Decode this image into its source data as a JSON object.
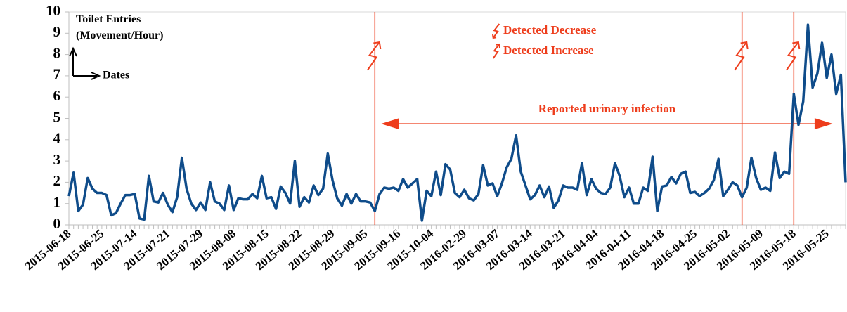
{
  "chart_data": {
    "type": "line",
    "ylabel": [
      "Toilet Entries",
      "(Movement/Hour)"
    ],
    "xlabel": "Dates",
    "legend": {
      "decrease": "Detected Decrease",
      "increase": "Detected Increase"
    },
    "interval": {
      "label": "Reported urinary infection",
      "start": 66,
      "end": 162,
      "y": 4.75
    },
    "events": [
      {
        "index": 65,
        "kind": "increase"
      },
      {
        "index": 143,
        "kind": "increase"
      },
      {
        "index": 154,
        "kind": "increase"
      }
    ],
    "event_color": "#ee3d1c",
    "ylim": [
      0,
      10
    ],
    "yticks": [
      0,
      1,
      2,
      3,
      4,
      5,
      6,
      7,
      8,
      9,
      10
    ],
    "grid": false,
    "categories": [
      "2015-06-18",
      null,
      null,
      null,
      null,
      null,
      null,
      "2015-06-25",
      null,
      null,
      null,
      null,
      null,
      null,
      "2015-07-14",
      null,
      null,
      null,
      null,
      null,
      null,
      "2015-07-21",
      null,
      null,
      null,
      null,
      null,
      null,
      "2015-07-29",
      null,
      null,
      null,
      null,
      null,
      null,
      "2015-08-08",
      null,
      null,
      null,
      null,
      null,
      null,
      "2015-08-15",
      null,
      null,
      null,
      null,
      null,
      null,
      "2015-08-22",
      null,
      null,
      null,
      null,
      null,
      null,
      "2015-08-29",
      null,
      null,
      null,
      null,
      null,
      null,
      "2015-09-05",
      null,
      null,
      null,
      null,
      null,
      null,
      "2015-09-16",
      null,
      null,
      null,
      null,
      null,
      null,
      "2015-10-04",
      null,
      null,
      null,
      null,
      null,
      null,
      "2016-02-29",
      null,
      null,
      null,
      null,
      null,
      null,
      "2016-03-07",
      null,
      null,
      null,
      null,
      null,
      null,
      "2016-03-14",
      null,
      null,
      null,
      null,
      null,
      null,
      "2016-03-21",
      null,
      null,
      null,
      null,
      null,
      null,
      "2016-04-04",
      null,
      null,
      null,
      null,
      null,
      null,
      "2016-04-11",
      null,
      null,
      null,
      null,
      null,
      null,
      "2016-04-18",
      null,
      null,
      null,
      null,
      null,
      null,
      "2016-04-25",
      null,
      null,
      null,
      null,
      null,
      null,
      "2016-05-02",
      null,
      null,
      null,
      null,
      null,
      null,
      "2016-05-09",
      null,
      null,
      null,
      null,
      null,
      null,
      "2016-05-18",
      null,
      null,
      null,
      null,
      null,
      null,
      "2016-05-25",
      null,
      null,
      null,
      null
    ],
    "series": [
      {
        "name": "Toilet Entries",
        "color": "#0f4c8a",
        "values": [
          1.35,
          2.45,
          0.65,
          0.95,
          2.2,
          1.7,
          1.5,
          1.5,
          1.4,
          0.45,
          0.55,
          1.0,
          1.4,
          1.4,
          1.45,
          0.3,
          0.25,
          2.3,
          1.1,
          1.05,
          1.5,
          0.95,
          0.6,
          1.3,
          3.15,
          1.7,
          1.0,
          0.7,
          1.05,
          0.7,
          2.0,
          1.1,
          1.0,
          0.7,
          1.85,
          0.7,
          1.25,
          1.2,
          1.2,
          1.45,
          1.25,
          2.3,
          1.25,
          1.3,
          0.75,
          1.8,
          1.5,
          1.0,
          3.0,
          0.85,
          1.3,
          1.05,
          1.85,
          1.4,
          1.7,
          3.35,
          2.1,
          1.25,
          0.9,
          1.45,
          1.0,
          1.45,
          1.1,
          1.1,
          1.05,
          0.65,
          1.45,
          1.75,
          1.7,
          1.75,
          1.6,
          2.15,
          1.75,
          1.95,
          2.15,
          0.2,
          1.6,
          1.35,
          2.5,
          1.4,
          2.85,
          2.6,
          1.5,
          1.3,
          1.65,
          1.25,
          1.15,
          1.45,
          2.8,
          1.85,
          1.95,
          1.35,
          1.95,
          2.7,
          3.1,
          4.2,
          2.5,
          1.85,
          1.2,
          1.4,
          1.85,
          1.3,
          1.8,
          0.8,
          1.15,
          1.85,
          1.75,
          1.75,
          1.65,
          2.9,
          1.4,
          2.15,
          1.7,
          1.5,
          1.45,
          1.75,
          2.9,
          2.3,
          1.3,
          1.75,
          1.0,
          1.0,
          1.75,
          1.6,
          3.2,
          0.65,
          1.8,
          1.85,
          2.25,
          1.95,
          2.4,
          2.5,
          1.5,
          1.55,
          1.35,
          1.5,
          1.7,
          2.1,
          3.1,
          1.35,
          1.65,
          2.0,
          1.85,
          1.3,
          1.75,
          3.15,
          2.2,
          1.65,
          1.75,
          1.6,
          3.4,
          2.2,
          2.5,
          2.4,
          6.15,
          4.7,
          5.8,
          9.4,
          6.45,
          7.1,
          8.55,
          6.9,
          8.0,
          6.15,
          7.05,
          2.0
        ]
      }
    ]
  }
}
